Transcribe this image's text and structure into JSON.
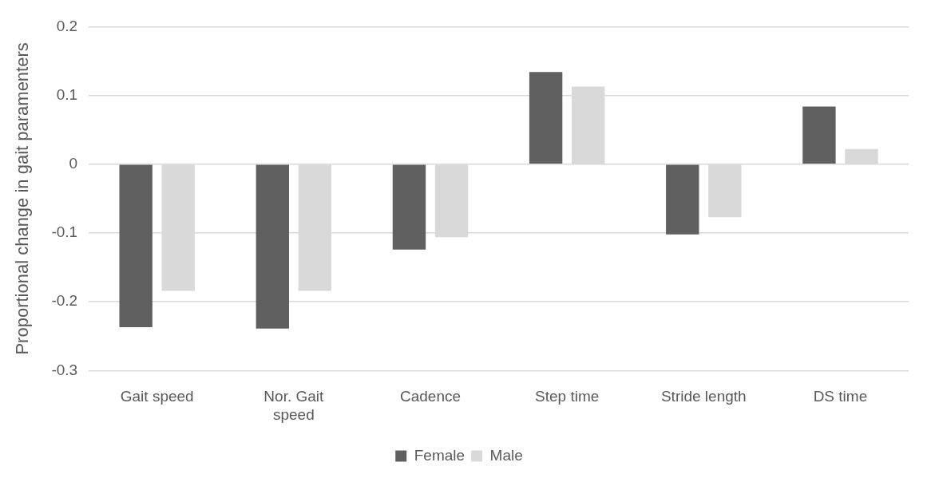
{
  "chart_data": {
    "type": "bar",
    "ylabel": "Proportional change in gait paramenters",
    "categories": [
      "Gait speed",
      "Nor. Gait speed",
      "Cadence",
      "Step time",
      "Stride length",
      "DS time"
    ],
    "series": [
      {
        "name": "Female",
        "color": "#606060",
        "values": [
          -0.237,
          -0.239,
          -0.124,
          0.134,
          -0.102,
          0.084
        ]
      },
      {
        "name": "Male",
        "color": "#d9d9d9",
        "values": [
          -0.184,
          -0.184,
          -0.106,
          0.113,
          -0.077,
          0.022
        ]
      }
    ],
    "ylim": [
      -0.3,
      0.2
    ],
    "yticks": [
      -0.3,
      -0.2,
      -0.1,
      0,
      0.1,
      0.2
    ],
    "grid": "y",
    "legend": "bottom"
  }
}
